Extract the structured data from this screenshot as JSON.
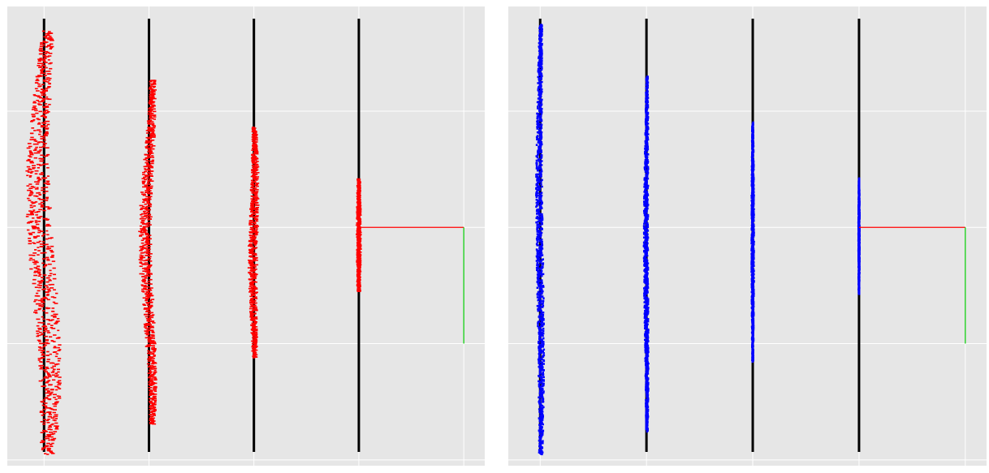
{
  "chart_data": [
    {
      "type": "scatter",
      "title": "",
      "xlabel": "",
      "ylabel": "",
      "xlim": [
        -0.35,
        4.2
      ],
      "ylim": [
        -2.05,
        1.9
      ],
      "grid": true,
      "colors": {
        "points": "#ff0000",
        "black_lines": "#000000",
        "axis_x": "#ff0000",
        "axis_y": "#00cc00",
        "background": "#e6e6e6",
        "gridline": "#ffffff"
      },
      "reference_lines_x": [
        0,
        1,
        2,
        3
      ],
      "marker_pair_vertical": true,
      "annotation_lines": [
        {
          "color": "#ff0000",
          "from": [
            3,
            0
          ],
          "to": [
            4,
            0
          ]
        },
        {
          "color": "#00cc00",
          "from": [
            4,
            0
          ],
          "to": [
            4,
            -1
          ]
        }
      ],
      "series": [
        {
          "center_x": 0,
          "y_range": [
            -2.3,
            1.69
          ],
          "half_width": 0.115,
          "bulge": 0.06
        },
        {
          "center_x": 1,
          "y_range": [
            -1.69,
            1.27
          ],
          "half_width": 0.05,
          "bulge": 0.035
        },
        {
          "center_x": 2,
          "y_range": [
            -1.12,
            0.86
          ],
          "half_width": 0.035,
          "bulge": 0.01
        },
        {
          "center_x": 3,
          "y_range": [
            -0.55,
            0.42
          ],
          "half_width": 0.012,
          "bulge": 0.0
        }
      ]
    },
    {
      "type": "scatter",
      "title": "",
      "xlabel": "",
      "ylabel": "",
      "xlim": [
        -0.3,
        4.2
      ],
      "ylim": [
        -2.05,
        1.9
      ],
      "grid": true,
      "colors": {
        "points": "#0000ff",
        "black_lines": "#000000",
        "axis_x": "#ff0000",
        "axis_y": "#00cc00",
        "background": "#e6e6e6",
        "gridline": "#ffffff"
      },
      "reference_lines_x": [
        0,
        1,
        2,
        3
      ],
      "marker_pair_vertical": false,
      "annotation_lines": [
        {
          "color": "#ff0000",
          "from": [
            3,
            0
          ],
          "to": [
            4,
            0
          ]
        },
        {
          "color": "#00cc00",
          "from": [
            4,
            0
          ],
          "to": [
            4,
            -1
          ]
        }
      ],
      "series": [
        {
          "center_x": 0,
          "y_range": [
            -2.3,
            1.75
          ],
          "half_width": 0.03,
          "bulge": 0.01
        },
        {
          "center_x": 1,
          "y_range": [
            -1.75,
            1.3
          ],
          "half_width": 0.02,
          "bulge": 0.005
        },
        {
          "center_x": 2,
          "y_range": [
            -1.15,
            0.9
          ],
          "half_width": 0.012,
          "bulge": 0.0
        },
        {
          "center_x": 3,
          "y_range": [
            -0.57,
            0.42
          ],
          "half_width": 0.006,
          "bulge": 0.0
        }
      ]
    }
  ]
}
